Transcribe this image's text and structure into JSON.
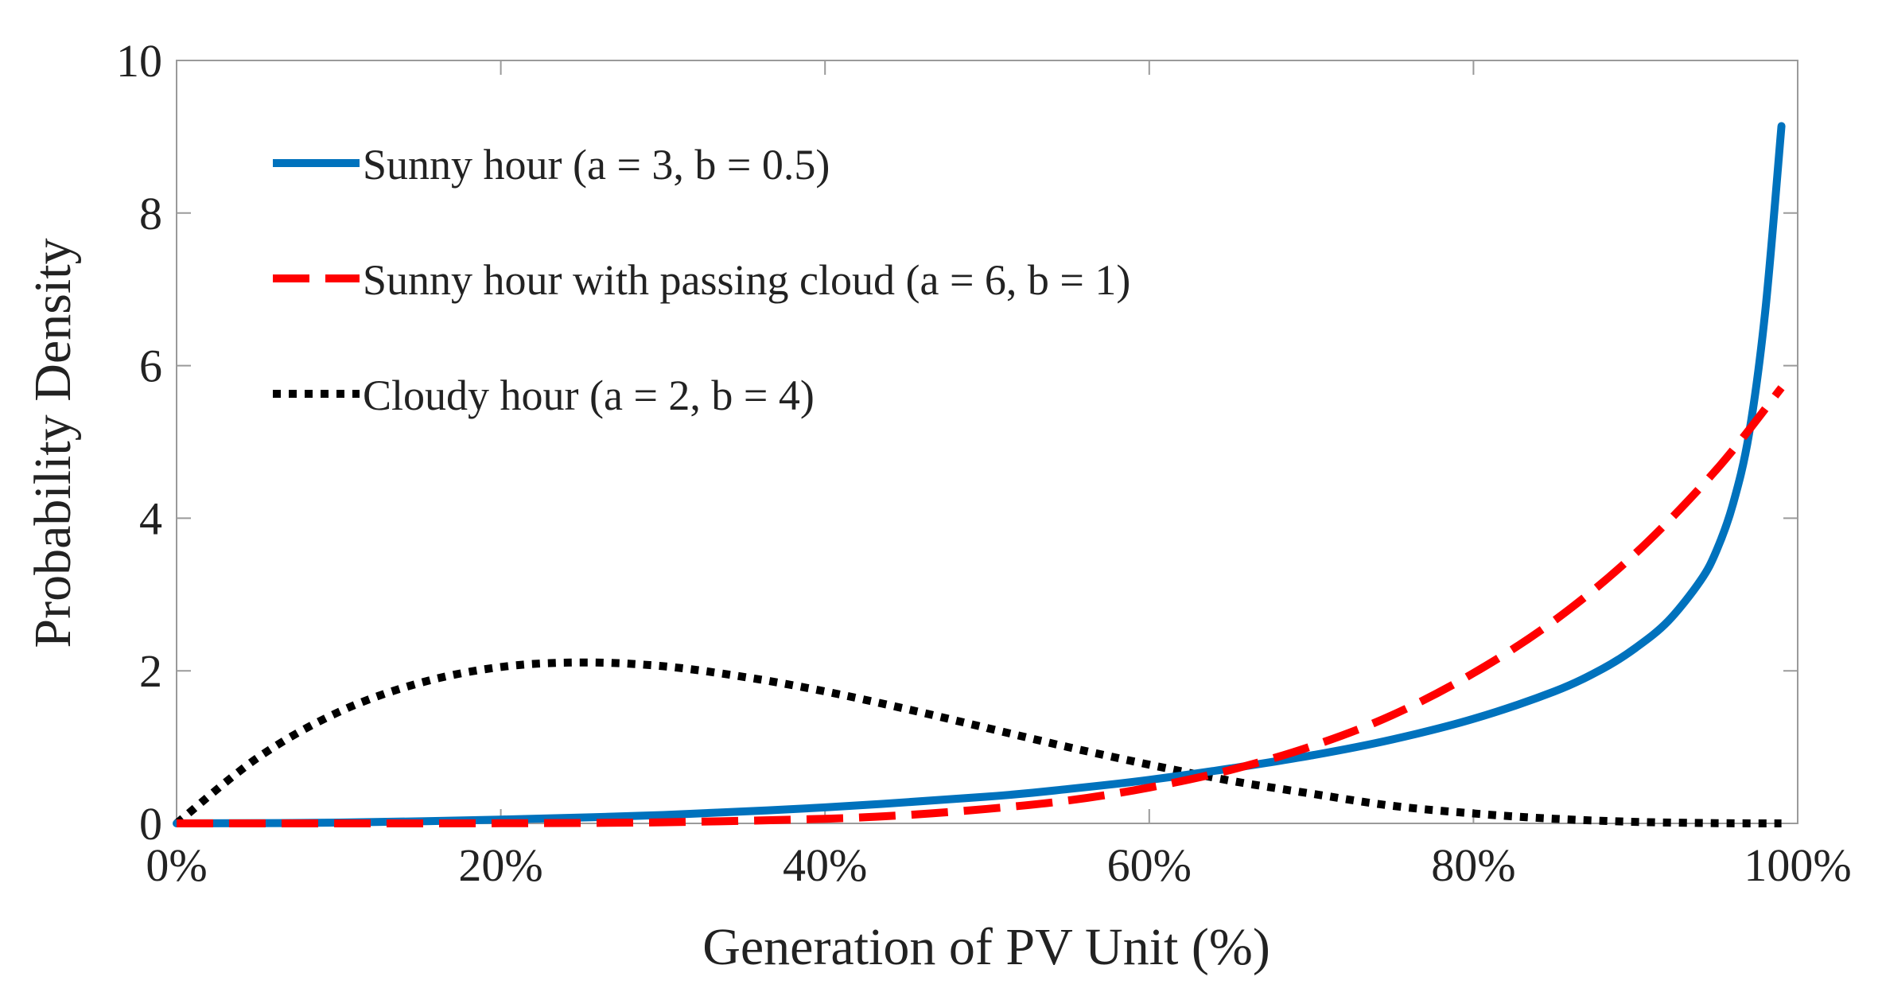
{
  "chart_data": {
    "type": "line",
    "title": "",
    "xlabel": "Generation of PV Unit (%)",
    "ylabel": "Probability Density",
    "xlim": [
      0,
      100
    ],
    "ylim": [
      0,
      10
    ],
    "x_tick_values": [
      0,
      20,
      40,
      60,
      80,
      100
    ],
    "x_tick_labels": [
      "0%",
      "20%",
      "40%",
      "60%",
      "80%",
      "100%"
    ],
    "y_tick_values": [
      0,
      2,
      4,
      6,
      8,
      10
    ],
    "y_tick_labels": [
      "0",
      "2",
      "4",
      "6",
      "8",
      "10"
    ],
    "grid": false,
    "legend_position": "top-left",
    "series": [
      {
        "name": "Sunny hour (a = 3, b = 0.5)",
        "color": "#0072BD",
        "style": "solid",
        "x": [
          0,
          10,
          20,
          30,
          40,
          50,
          55,
          60,
          65,
          70,
          75,
          80,
          85,
          88,
          90,
          92,
          94,
          95,
          96,
          97,
          98,
          99
        ],
        "y": [
          0,
          0.01,
          0.05,
          0.11,
          0.21,
          0.35,
          0.45,
          0.57,
          0.72,
          0.89,
          1.1,
          1.37,
          1.73,
          2.03,
          2.3,
          2.65,
          3.18,
          3.58,
          4.18,
          5.11,
          6.71,
          9.14
        ]
      },
      {
        "name": "Sunny hour with passing cloud (a = 6, b = 1)",
        "color": "#FF0000",
        "style": "dashed",
        "x": [
          0,
          10,
          20,
          30,
          40,
          45,
          50,
          55,
          60,
          65,
          70,
          75,
          80,
          85,
          90,
          95,
          99
        ],
        "y": [
          0,
          0.0001,
          0.002,
          0.015,
          0.061,
          0.11,
          0.19,
          0.3,
          0.47,
          0.7,
          1.01,
          1.42,
          1.97,
          2.66,
          3.54,
          4.64,
          5.71
        ]
      },
      {
        "name": "Cloudy hour (a = 2, b = 4)",
        "color": "#000000",
        "style": "dotted",
        "x": [
          0,
          5,
          10,
          15,
          20,
          25,
          30,
          35,
          40,
          45,
          50,
          55,
          60,
          65,
          70,
          75,
          80,
          85,
          90,
          95,
          99
        ],
        "y": [
          0,
          0.86,
          1.46,
          1.84,
          2.05,
          2.11,
          2.06,
          1.92,
          1.73,
          1.5,
          1.25,
          1.0,
          0.77,
          0.56,
          0.39,
          0.23,
          0.13,
          0.06,
          0.02,
          0.003,
          2e-05
        ]
      }
    ]
  }
}
